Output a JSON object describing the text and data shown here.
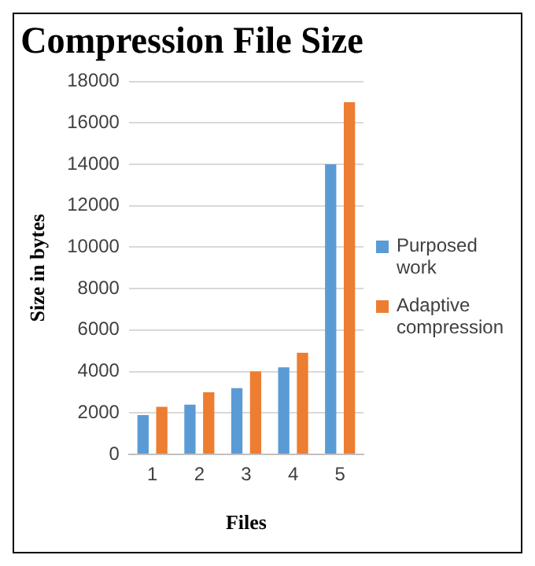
{
  "chart_data": {
    "type": "bar",
    "title": "Compression File Size",
    "xlabel": "Files",
    "ylabel": "Size in bytes",
    "categories": [
      "1",
      "2",
      "3",
      "4",
      "5"
    ],
    "series": [
      {
        "name": "Purposed work",
        "color": "#5b9bd5",
        "values": [
          1900,
          2400,
          3200,
          4200,
          14000
        ]
      },
      {
        "name": "Adaptive compression",
        "color": "#ed7d31",
        "values": [
          2300,
          3000,
          4000,
          4900,
          17000
        ]
      }
    ],
    "ylim": [
      0,
      18000
    ],
    "yticks": [
      0,
      2000,
      4000,
      6000,
      8000,
      10000,
      12000,
      14000,
      16000,
      18000
    ],
    "grid": "y",
    "legend": "right"
  }
}
